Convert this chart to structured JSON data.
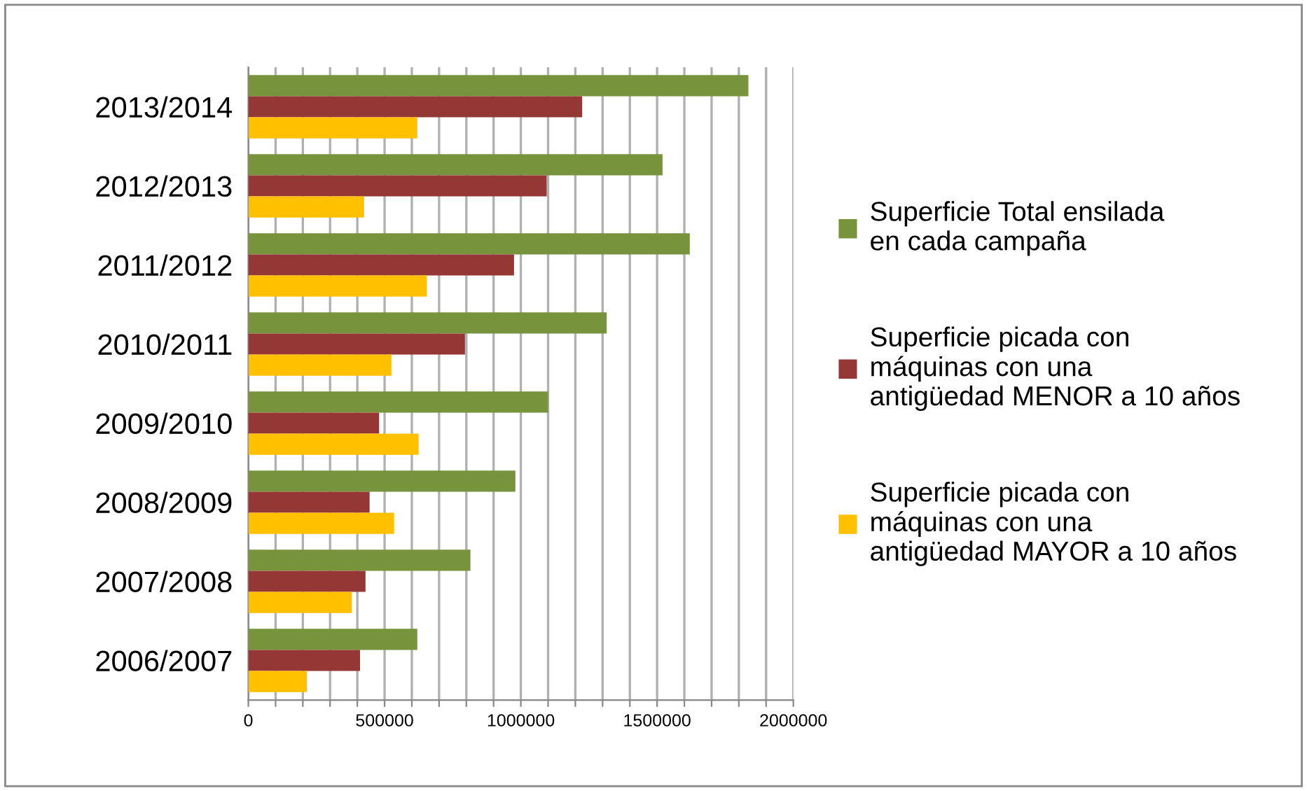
{
  "chart_data": {
    "type": "bar",
    "orientation": "horizontal",
    "categories": [
      "2013/2014",
      "2012/2013",
      "2011/2012",
      "2010/2011",
      "2009/2010",
      "2008/2009",
      "2007/2008",
      "2006/2007"
    ],
    "series": [
      {
        "name": "Superficie Total ensilada en cada campaña",
        "color": "#77933c",
        "values": [
          1835000,
          1520000,
          1620000,
          1315000,
          1100000,
          980000,
          815000,
          620000
        ]
      },
      {
        "name": "Superficie picada con máquinas con una antigüedad MENOR a 10 años",
        "color": "#953735",
        "values": [
          1225000,
          1095000,
          975000,
          795000,
          480000,
          445000,
          430000,
          410000
        ]
      },
      {
        "name": "Superficie picada con máquinas con una antigüedad MAYOR a 10 años",
        "color": "#ffc000",
        "values": [
          620000,
          425000,
          655000,
          525000,
          625000,
          535000,
          380000,
          215000
        ]
      }
    ],
    "xlim": [
      0,
      2000000
    ],
    "xticks": [
      0,
      {
        "value": 100000,
        "label": null
      },
      {
        "value": 200000,
        "label": null
      },
      {
        "value": 300000,
        "label": null
      },
      {
        "value": 400000,
        "label": null
      },
      500000,
      {
        "value": 600000,
        "label": null
      },
      {
        "value": 700000,
        "label": null
      },
      {
        "value": 800000,
        "label": null
      },
      {
        "value": 900000,
        "label": null
      },
      1000000,
      {
        "value": 1100000,
        "label": null
      },
      {
        "value": 1200000,
        "label": null
      },
      {
        "value": 1300000,
        "label": null
      },
      {
        "value": 1400000,
        "label": null
      },
      1500000,
      {
        "value": 1600000,
        "label": null
      },
      {
        "value": 1700000,
        "label": null
      },
      {
        "value": 1800000,
        "label": null
      },
      {
        "value": 1900000,
        "label": null
      },
      2000000
    ],
    "grid": "x",
    "legend": "right"
  }
}
